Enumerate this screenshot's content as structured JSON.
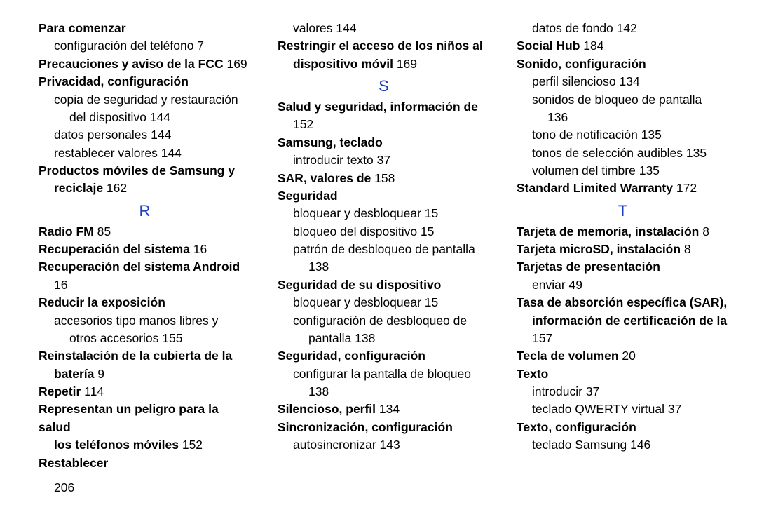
{
  "pageNumber": "206",
  "col1": [
    {
      "cls": "heading",
      "parts": [
        {
          "t": "Para comenzar",
          "b": true
        }
      ]
    },
    {
      "cls": "sub",
      "parts": [
        {
          "t": "configuración del teléfono 7"
        }
      ]
    },
    {
      "cls": "heading",
      "parts": [
        {
          "t": "Precauciones y aviso de la FCC",
          "b": true
        },
        {
          "t": " 169"
        }
      ]
    },
    {
      "cls": "heading",
      "parts": [
        {
          "t": "Privacidad, configuración",
          "b": true
        }
      ]
    },
    {
      "cls": "sub",
      "parts": [
        {
          "t": "copia de seguridad y restauración"
        }
      ]
    },
    {
      "cls": "sub2",
      "parts": [
        {
          "t": "del dispositivo 144"
        }
      ]
    },
    {
      "cls": "sub",
      "parts": [
        {
          "t": "datos personales 144"
        }
      ]
    },
    {
      "cls": "sub",
      "parts": [
        {
          "t": "restablecer valores 144"
        }
      ]
    },
    {
      "cls": "heading",
      "parts": [
        {
          "t": "Productos móviles de Samsung y",
          "b": true
        }
      ]
    },
    {
      "cls": "sub",
      "parts": [
        {
          "t": "reciclaje",
          "b": true
        },
        {
          "t": " 162"
        }
      ]
    },
    {
      "cls": "letter",
      "parts": [
        {
          "t": "R"
        }
      ]
    },
    {
      "cls": "heading",
      "parts": [
        {
          "t": "Radio FM",
          "b": true
        },
        {
          "t": " 85"
        }
      ]
    },
    {
      "cls": "heading",
      "parts": [
        {
          "t": "Recuperación del sistema",
          "b": true
        },
        {
          "t": " 16"
        }
      ]
    },
    {
      "cls": "heading",
      "parts": [
        {
          "t": "Recuperación del sistema Android",
          "b": true
        }
      ]
    },
    {
      "cls": "pagecont",
      "parts": [
        {
          "t": "16"
        }
      ]
    },
    {
      "cls": "heading",
      "parts": [
        {
          "t": "Reducir la exposición",
          "b": true
        }
      ]
    },
    {
      "cls": "sub",
      "parts": [
        {
          "t": "accesorios tipo manos libres y"
        }
      ]
    },
    {
      "cls": "sub2",
      "parts": [
        {
          "t": "otros accesorios 155"
        }
      ]
    },
    {
      "cls": "heading",
      "parts": [
        {
          "t": "Reinstalación de la cubierta de la",
          "b": true
        }
      ]
    },
    {
      "cls": "sub",
      "parts": [
        {
          "t": "batería",
          "b": true
        },
        {
          "t": " 9"
        }
      ]
    },
    {
      "cls": "heading",
      "parts": [
        {
          "t": "Repetir",
          "b": true
        },
        {
          "t": " 114"
        }
      ]
    },
    {
      "cls": "heading",
      "parts": [
        {
          "t": "Representan un peligro para la salud",
          "b": true
        }
      ]
    },
    {
      "cls": "sub",
      "parts": [
        {
          "t": "los teléfonos móviles",
          "b": true
        },
        {
          "t": " 152"
        }
      ]
    },
    {
      "cls": "heading",
      "parts": [
        {
          "t": "Restablecer",
          "b": true
        }
      ]
    }
  ],
  "col2": [
    {
      "cls": "sub",
      "parts": [
        {
          "t": "valores 144"
        }
      ]
    },
    {
      "cls": "heading",
      "parts": [
        {
          "t": "Restringir el acceso de los niños al",
          "b": true
        }
      ]
    },
    {
      "cls": "sub",
      "parts": [
        {
          "t": "dispositivo móvil",
          "b": true
        },
        {
          "t": " 169"
        }
      ]
    },
    {
      "cls": "letter",
      "parts": [
        {
          "t": "S"
        }
      ]
    },
    {
      "cls": "heading",
      "parts": [
        {
          "t": "Salud y seguridad, información de",
          "b": true
        }
      ]
    },
    {
      "cls": "pagecont",
      "parts": [
        {
          "t": "152"
        }
      ]
    },
    {
      "cls": "heading",
      "parts": [
        {
          "t": "Samsung, teclado",
          "b": true
        }
      ]
    },
    {
      "cls": "sub",
      "parts": [
        {
          "t": "introducir texto 37"
        }
      ]
    },
    {
      "cls": "heading",
      "parts": [
        {
          "t": "SAR, valores de",
          "b": true
        },
        {
          "t": " 158"
        }
      ]
    },
    {
      "cls": "heading",
      "parts": [
        {
          "t": "Seguridad",
          "b": true
        }
      ]
    },
    {
      "cls": "sub",
      "parts": [
        {
          "t": "bloquear y desbloquear 15"
        }
      ]
    },
    {
      "cls": "sub",
      "parts": [
        {
          "t": "bloqueo del dispositivo 15"
        }
      ]
    },
    {
      "cls": "sub",
      "parts": [
        {
          "t": "patrón de desbloqueo de pantalla"
        }
      ]
    },
    {
      "cls": "sub2",
      "parts": [
        {
          "t": "138"
        }
      ]
    },
    {
      "cls": "heading",
      "parts": [
        {
          "t": "Seguridad de su dispositivo",
          "b": true
        }
      ]
    },
    {
      "cls": "sub",
      "parts": [
        {
          "t": "bloquear y desbloquear 15"
        }
      ]
    },
    {
      "cls": "sub",
      "parts": [
        {
          "t": "configuración de desbloqueo de"
        }
      ]
    },
    {
      "cls": "sub2",
      "parts": [
        {
          "t": "pantalla 138"
        }
      ]
    },
    {
      "cls": "heading",
      "parts": [
        {
          "t": "Seguridad, configuración",
          "b": true
        }
      ]
    },
    {
      "cls": "sub",
      "parts": [
        {
          "t": "configurar la pantalla de bloqueo"
        }
      ]
    },
    {
      "cls": "sub2",
      "parts": [
        {
          "t": "138"
        }
      ]
    },
    {
      "cls": "heading",
      "parts": [
        {
          "t": "Silencioso, perfil",
          "b": true
        },
        {
          "t": " 134"
        }
      ]
    },
    {
      "cls": "heading",
      "parts": [
        {
          "t": "Sincronización, configuración",
          "b": true
        }
      ]
    },
    {
      "cls": "sub",
      "parts": [
        {
          "t": "autosincronizar 143"
        }
      ]
    }
  ],
  "col3": [
    {
      "cls": "sub",
      "parts": [
        {
          "t": "datos de fondo 142"
        }
      ]
    },
    {
      "cls": "heading",
      "parts": [
        {
          "t": "Social Hub",
          "b": true
        },
        {
          "t": " 184"
        }
      ]
    },
    {
      "cls": "heading",
      "parts": [
        {
          "t": "Sonido, configuración",
          "b": true
        }
      ]
    },
    {
      "cls": "sub",
      "parts": [
        {
          "t": "perfil silencioso 134"
        }
      ]
    },
    {
      "cls": "sub",
      "parts": [
        {
          "t": "sonidos de bloqueo de pantalla"
        }
      ]
    },
    {
      "cls": "sub2",
      "parts": [
        {
          "t": "136"
        }
      ]
    },
    {
      "cls": "sub",
      "parts": [
        {
          "t": "tono de notificación 135"
        }
      ]
    },
    {
      "cls": "sub",
      "parts": [
        {
          "t": "tonos de selección audibles 135"
        }
      ]
    },
    {
      "cls": "sub",
      "parts": [
        {
          "t": "volumen del timbre 135"
        }
      ]
    },
    {
      "cls": "heading",
      "parts": [
        {
          "t": "Standard Limited Warranty",
          "b": true
        },
        {
          "t": " 172"
        }
      ]
    },
    {
      "cls": "letter",
      "parts": [
        {
          "t": "T"
        }
      ]
    },
    {
      "cls": "heading",
      "parts": [
        {
          "t": "Tarjeta de memoria, instalación",
          "b": true
        },
        {
          "t": " 8"
        }
      ]
    },
    {
      "cls": "heading",
      "parts": [
        {
          "t": "Tarjeta microSD, instalación",
          "b": true
        },
        {
          "t": " 8"
        }
      ]
    },
    {
      "cls": "heading",
      "parts": [
        {
          "t": "Tarjetas de presentación",
          "b": true
        }
      ]
    },
    {
      "cls": "sub",
      "parts": [
        {
          "t": "enviar 49"
        }
      ]
    },
    {
      "cls": "heading",
      "parts": [
        {
          "t": "Tasa de absorción específica (SAR),",
          "b": true
        }
      ]
    },
    {
      "cls": "sub",
      "parts": [
        {
          "t": "información de certificación de la",
          "b": true
        }
      ]
    },
    {
      "cls": "pagecont",
      "parts": [
        {
          "t": "157"
        }
      ]
    },
    {
      "cls": "heading",
      "parts": [
        {
          "t": "Tecla de volumen",
          "b": true
        },
        {
          "t": " 20"
        }
      ]
    },
    {
      "cls": "heading",
      "parts": [
        {
          "t": "Texto",
          "b": true
        }
      ]
    },
    {
      "cls": "sub",
      "parts": [
        {
          "t": "introducir 37"
        }
      ]
    },
    {
      "cls": "sub",
      "parts": [
        {
          "t": "teclado QWERTY virtual 37"
        }
      ]
    },
    {
      "cls": "heading",
      "parts": [
        {
          "t": "Texto, configuración",
          "b": true
        }
      ]
    },
    {
      "cls": "sub",
      "parts": [
        {
          "t": "teclado Samsung 146"
        }
      ]
    }
  ]
}
